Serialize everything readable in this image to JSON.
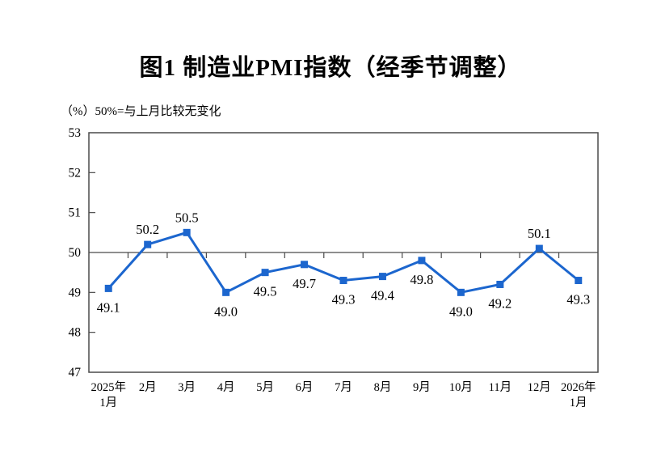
{
  "page": {
    "background": "#ffffff"
  },
  "chart_data": {
    "type": "line",
    "title": "图1  制造业PMI指数（经季节调整）",
    "subtitle": "（%）50%=与上月比较无变化",
    "categories": [
      "2025年\n1月",
      "2月",
      "3月",
      "4月",
      "5月",
      "6月",
      "7月",
      "8月",
      "9月",
      "10月",
      "11月",
      "12月",
      "2026年\n1月"
    ],
    "values": [
      49.1,
      50.2,
      50.5,
      49.0,
      49.5,
      49.7,
      49.3,
      49.4,
      49.8,
      49.0,
      49.2,
      50.1,
      49.3
    ],
    "data_labels": [
      "49.1",
      "50.2",
      "50.5",
      "49.0",
      "49.5",
      "49.7",
      "49.3",
      "49.4",
      "49.8",
      "49.0",
      "49.2",
      "50.1",
      "49.3"
    ],
    "xlabel": "",
    "ylabel": "",
    "ylim": [
      47,
      53
    ],
    "y_ticks": [
      47,
      48,
      49,
      50,
      51,
      52,
      53
    ],
    "reference_line": 50,
    "grid": false,
    "legend": false,
    "colors": {
      "line": "#1C66CE",
      "marker": "#1C66CE",
      "axis": "#4a4a4a",
      "text": "#000000"
    }
  }
}
